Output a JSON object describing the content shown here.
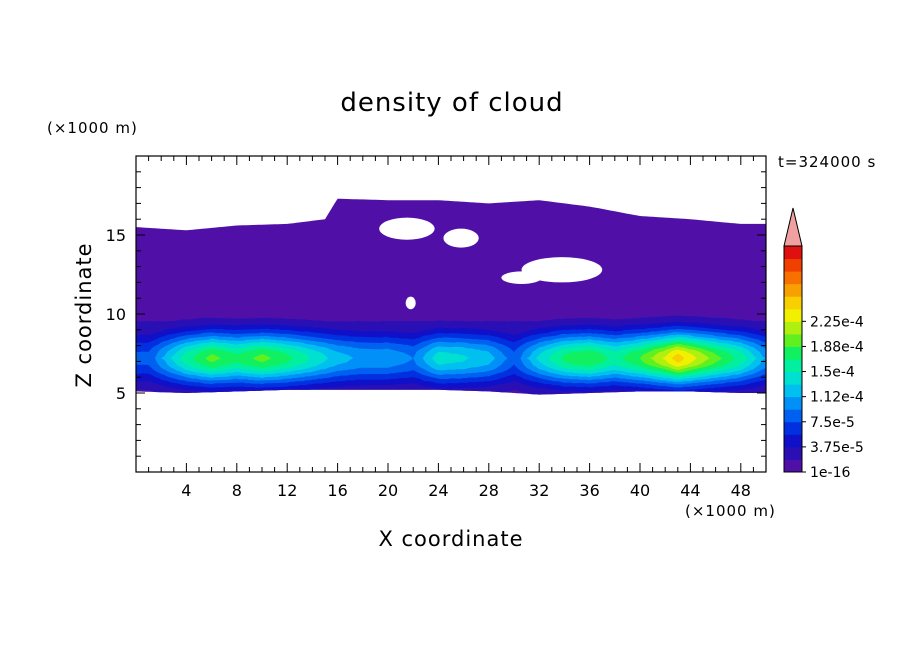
{
  "chart_data": {
    "type": "heatmap",
    "title": "density of cloud",
    "xlabel": "X coordinate",
    "ylabel": "Z coordinate",
    "x_unit": "(×1000 m)",
    "y_unit": "(×1000 m)",
    "time_label": "t=324000 s",
    "xlim": [
      0,
      50
    ],
    "ylim": [
      0,
      20
    ],
    "x_ticks": [
      4,
      8,
      12,
      16,
      20,
      24,
      28,
      32,
      36,
      40,
      44,
      48
    ],
    "y_ticks": [
      5,
      10,
      15
    ],
    "colorbar": {
      "labels": [
        "1e-16",
        "3.75e-5",
        "7.5e-5",
        "1.12e-4",
        "1.5e-4",
        "1.88e-4",
        "2.25e-4"
      ],
      "colors": [
        "#5010a8",
        "#2a10b4",
        "#1010c8",
        "#0030e0",
        "#0060f0",
        "#0090f8",
        "#00c0f0",
        "#00e0d0",
        "#00f0a0",
        "#10f060",
        "#60f020",
        "#b0f010",
        "#f0f000",
        "#f8d000",
        "#f8a000",
        "#f87000",
        "#f04000",
        "#e01010"
      ],
      "extend_color": "#f0a0a0"
    },
    "series": [
      {
        "name": "cloud_top",
        "x": [
          0,
          4,
          8,
          12,
          15,
          16,
          20,
          24,
          28,
          32,
          36,
          40,
          44,
          48,
          50
        ],
        "values": [
          15.5,
          15.3,
          15.6,
          15.7,
          16.0,
          17.3,
          17.2,
          17.2,
          17.0,
          17.2,
          16.8,
          16.2,
          16.0,
          15.7,
          15.7
        ]
      },
      {
        "name": "cloud_base",
        "x": [
          0,
          4,
          8,
          12,
          16,
          20,
          24,
          28,
          32,
          36,
          40,
          44,
          48,
          50
        ],
        "values": [
          5.1,
          5.0,
          5.1,
          5.2,
          5.2,
          5.2,
          5.2,
          5.1,
          4.9,
          5.0,
          5.1,
          5.1,
          5.0,
          5.0
        ]
      },
      {
        "name": "peak_density",
        "x": [
          1,
          4,
          6,
          8,
          10,
          12,
          14,
          16,
          18,
          20,
          22,
          24,
          26,
          28,
          30,
          32,
          34,
          36,
          38,
          40,
          42,
          43,
          44,
          46,
          48,
          50
        ],
        "values": [
          6e-05,
          0.00012,
          0.000145,
          0.00013,
          0.000145,
          0.00013,
          0.00011,
          9e-05,
          8e-05,
          8e-05,
          7e-05,
          0.000105,
          0.0001,
          9e-05,
          6e-05,
          0.0001,
          0.00013,
          0.00014,
          0.00012,
          0.00014,
          0.00017,
          0.00019,
          0.000175,
          0.000145,
          0.00012,
          8e-05
        ]
      }
    ]
  }
}
